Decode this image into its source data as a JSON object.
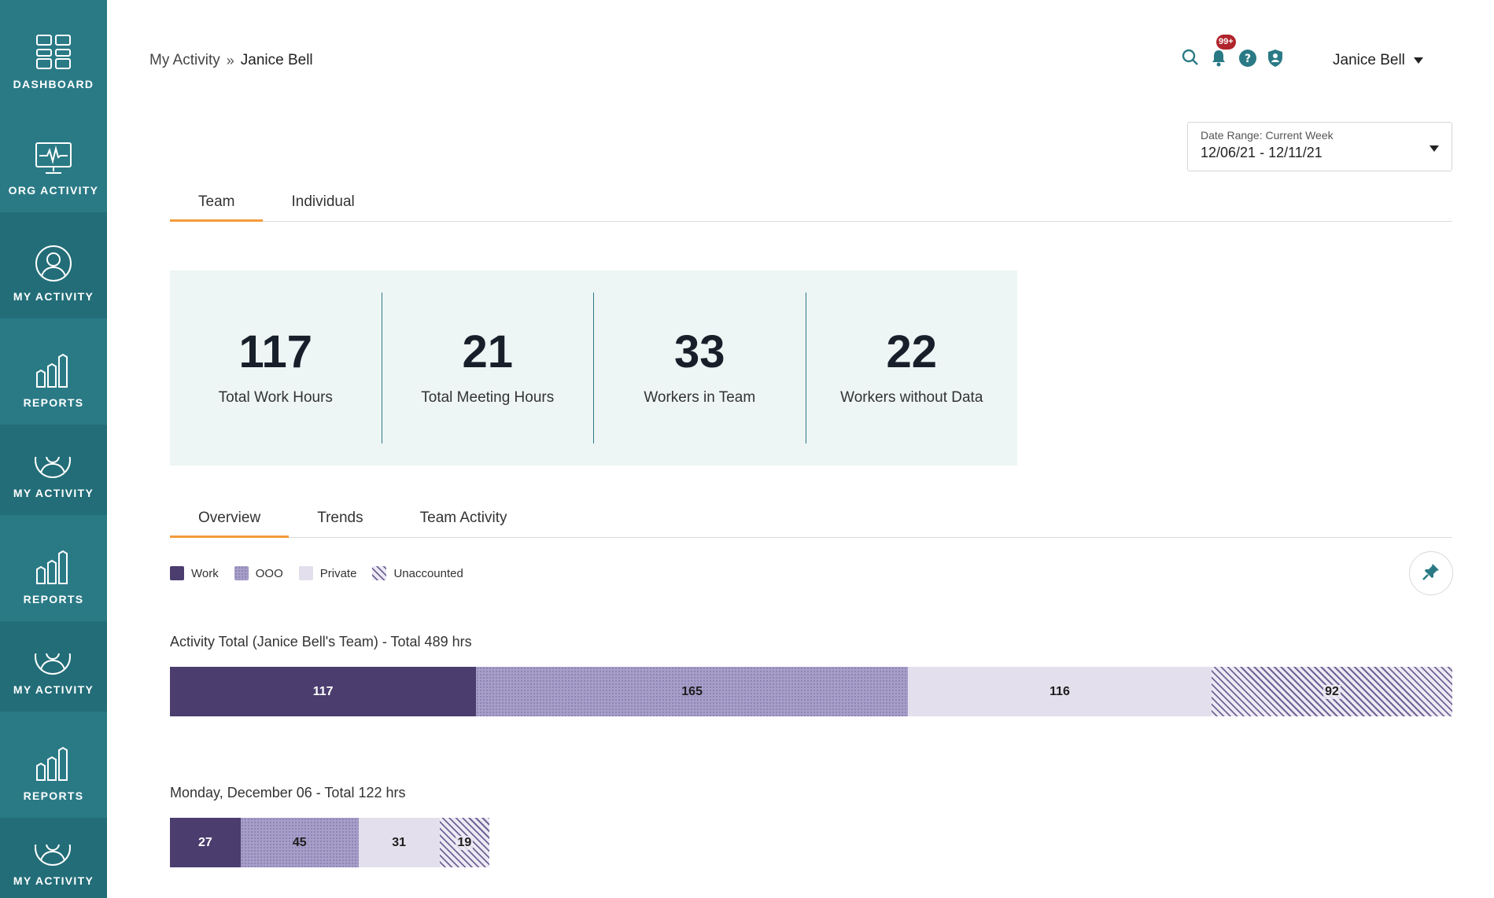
{
  "sidebar": {
    "items": [
      {
        "label": "DASHBOARD",
        "icon": "dashboard-icon"
      },
      {
        "label": "ORG ACTIVITY",
        "icon": "monitor-pulse-icon"
      },
      {
        "label": "MY ACTIVITY",
        "icon": "user-circle-icon",
        "active": true
      },
      {
        "label": "REPORTS",
        "icon": "bar-chart-icon"
      },
      {
        "label": "MY ACTIVITY",
        "icon": "user-circle-icon"
      },
      {
        "label": "REPORTS",
        "icon": "bar-chart-icon"
      },
      {
        "label": "MY ACTIVITY",
        "icon": "user-circle-icon"
      },
      {
        "label": "REPORTS",
        "icon": "bar-chart-icon"
      },
      {
        "label": "MY ACTIVITY",
        "icon": "user-circle-icon"
      }
    ]
  },
  "breadcrumb": {
    "parent": "My Activity",
    "separator": "»",
    "current": "Janice Bell"
  },
  "header": {
    "icons": [
      "search-icon",
      "bell-icon",
      "help-icon",
      "shield-user-icon"
    ],
    "notification_badge": "99+",
    "user_name": "Janice Bell"
  },
  "date_range": {
    "label": "Date Range: Current Week",
    "value": "12/06/21 - 12/11/21"
  },
  "top_tabs": [
    {
      "label": "Team",
      "active": true
    },
    {
      "label": "Individual",
      "active": false
    }
  ],
  "stats": [
    {
      "value": "117",
      "label": "Total Work Hours"
    },
    {
      "value": "21",
      "label": "Total Meeting Hours"
    },
    {
      "value": "33",
      "label": "Workers in Team"
    },
    {
      "value": "22",
      "label": "Workers without Data"
    }
  ],
  "sub_tabs": [
    {
      "label": "Overview",
      "active": true
    },
    {
      "label": "Trends",
      "active": false
    },
    {
      "label": "Team Activity",
      "active": false
    }
  ],
  "legend": [
    {
      "label": "Work"
    },
    {
      "label": "OOO"
    },
    {
      "label": "Private"
    },
    {
      "label": "Unaccounted"
    }
  ],
  "colors": {
    "sidebar": "#2a7a86",
    "accent": "#f39a3b",
    "work": "#4b3d6e",
    "ooo": "#a79ec9",
    "private": "#e3dfec"
  },
  "chart_data": [
    {
      "type": "bar",
      "title": "Activity Total (Janice Bell's Team) - Total 489 hrs",
      "stacked": true,
      "segments": [
        {
          "name": "Work",
          "value": 117
        },
        {
          "name": "OOO",
          "value": 165
        },
        {
          "name": "Private",
          "value": 116
        },
        {
          "name": "Unaccounted",
          "value": 92
        }
      ]
    },
    {
      "type": "bar",
      "title": "Monday, December 06 - Total 122 hrs",
      "stacked": true,
      "segments": [
        {
          "name": "Work",
          "value": 27
        },
        {
          "name": "OOO",
          "value": 45
        },
        {
          "name": "Private",
          "value": 31
        },
        {
          "name": "Unaccounted",
          "value": 19
        }
      ]
    }
  ]
}
